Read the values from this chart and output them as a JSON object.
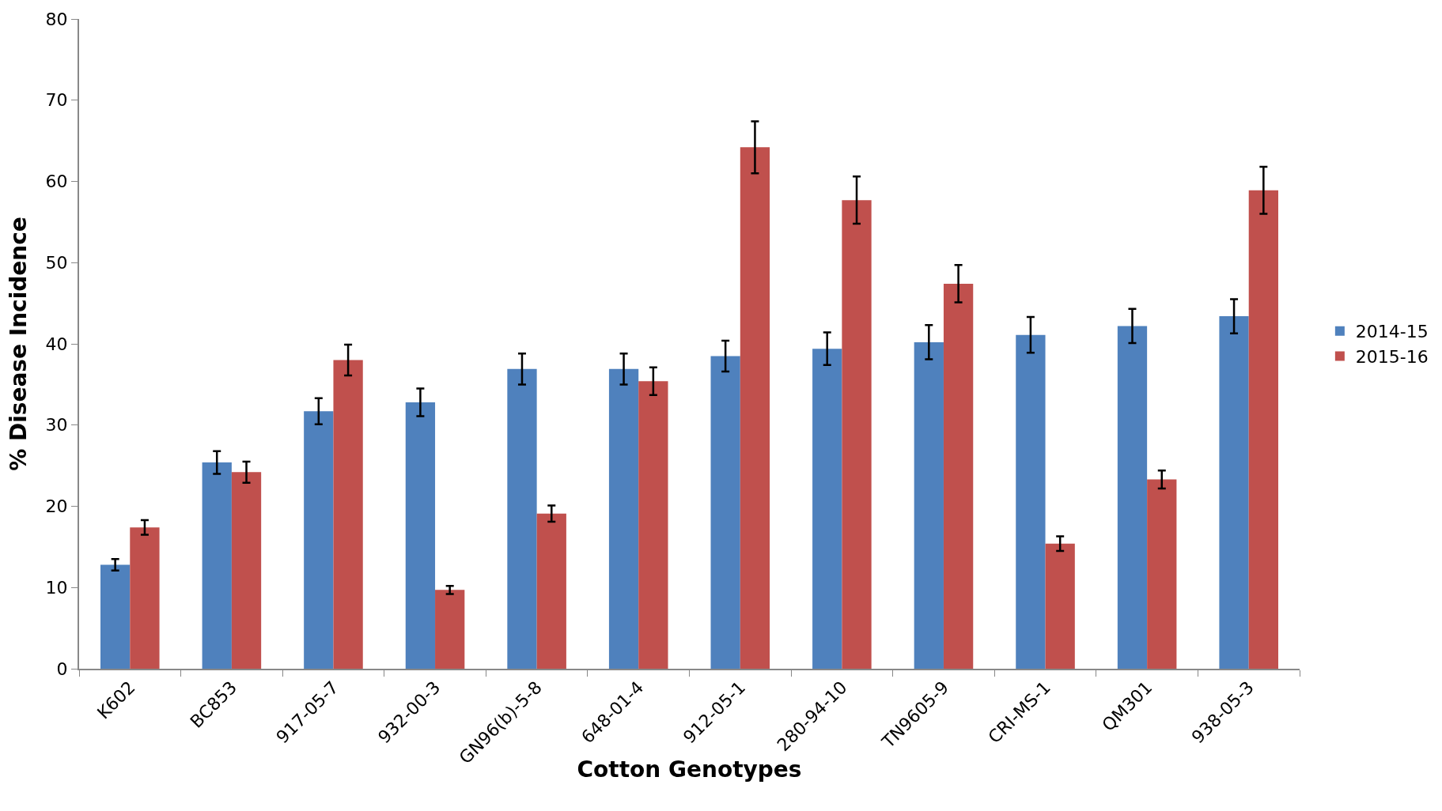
{
  "chart_data": {
    "type": "bar",
    "xlabel": "Cotton Genotypes",
    "ylabel": "% Disease Incidence",
    "categories": [
      "K602",
      "BC853",
      "917-05-7",
      "932-00-3",
      "GN96(b)-5-8",
      "648-01-4",
      "912-05-1",
      "280-94-10",
      "TN9605-9",
      "CRI-MS-1",
      "QM301",
      "938-05-3"
    ],
    "series": [
      {
        "name": "2014-15",
        "color": "#4f81bd",
        "values": [
          12.8,
          25.4,
          31.7,
          32.8,
          36.9,
          36.9,
          38.5,
          39.4,
          40.2,
          41.1,
          42.2,
          43.4
        ],
        "errors": [
          0.7,
          1.4,
          1.6,
          1.7,
          1.9,
          1.9,
          1.9,
          2.0,
          2.1,
          2.2,
          2.1,
          2.1
        ]
      },
      {
        "name": "2015-16",
        "color": "#c0504d",
        "values": [
          17.4,
          24.2,
          38.0,
          9.7,
          19.1,
          35.4,
          64.2,
          57.7,
          47.4,
          15.4,
          23.3,
          58.9
        ],
        "errors": [
          0.9,
          1.3,
          1.9,
          0.5,
          1.0,
          1.7,
          3.2,
          2.9,
          2.3,
          0.9,
          1.1,
          2.9
        ]
      }
    ],
    "ylim": [
      0,
      80
    ],
    "yticks": [
      0,
      10,
      20,
      30,
      40,
      50,
      60,
      70,
      80
    ],
    "grid": false,
    "legend": "right"
  }
}
